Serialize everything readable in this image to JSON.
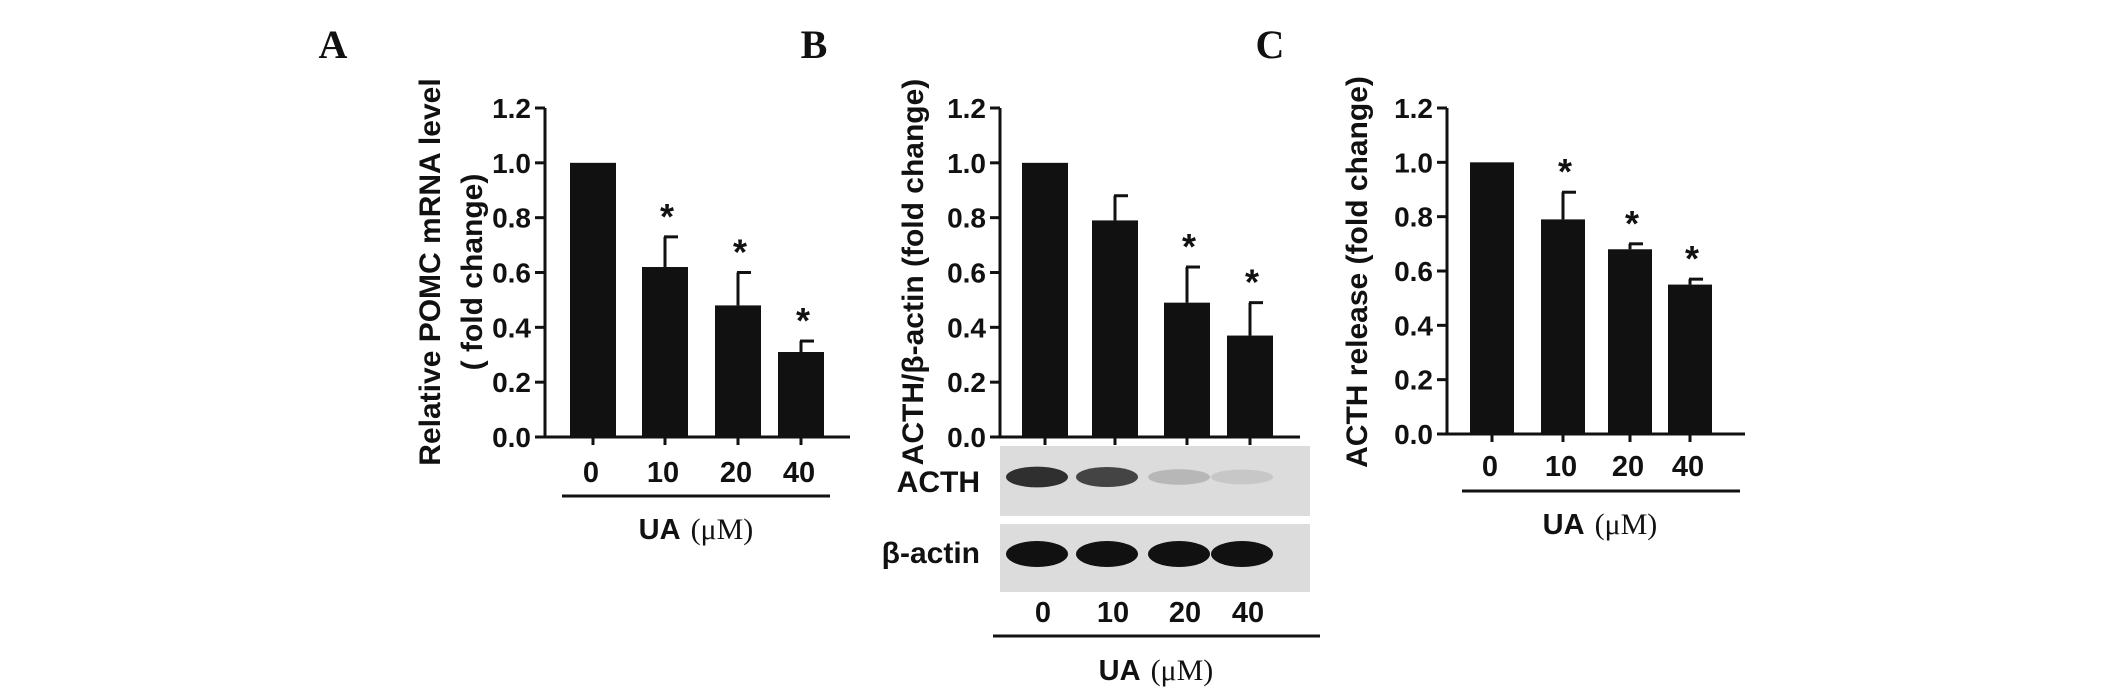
{
  "chart_data": [
    {
      "type": "bar",
      "panel": "A",
      "categories": [
        "0",
        "10",
        "20",
        "40"
      ],
      "values": [
        1.0,
        0.62,
        0.48,
        0.31
      ],
      "errors": [
        0.0,
        0.11,
        0.12,
        0.04
      ],
      "significant": [
        false,
        true,
        true,
        true
      ],
      "significance_marker": "*",
      "ylabel": [
        "Relative POMC mRNA level",
        "( fold change)"
      ],
      "xlabel": "UA",
      "xlabel_unit": "(μM)",
      "ylim": [
        0,
        1.2
      ],
      "yticks": [
        "0.0",
        "0.2",
        "0.4",
        "0.6",
        "0.8",
        "1.0",
        "1.2"
      ]
    },
    {
      "type": "bar",
      "panel": "B",
      "categories": [
        "0",
        "10",
        "20",
        "40"
      ],
      "values": [
        1.0,
        0.79,
        0.49,
        0.37
      ],
      "errors": [
        0.0,
        0.09,
        0.13,
        0.12
      ],
      "significant": [
        false,
        false,
        true,
        true
      ],
      "significance_marker": "*",
      "ylabel": [
        "ACTH/β-actin (fold change)"
      ],
      "xlabel": "UA",
      "xlabel_unit": "(μM)",
      "ylim": [
        0,
        1.2
      ],
      "yticks": [
        "0.0",
        "0.2",
        "0.4",
        "0.6",
        "0.8",
        "1.0",
        "1.2"
      ],
      "blots": [
        {
          "label": "ACTH",
          "intensities": [
            0.85,
            0.75,
            0.18,
            0.1
          ]
        },
        {
          "label": "β-actin",
          "intensities": [
            1.0,
            1.0,
            1.0,
            1.0
          ]
        }
      ]
    },
    {
      "type": "bar",
      "panel": "C",
      "categories": [
        "0",
        "10",
        "20",
        "40"
      ],
      "values": [
        1.0,
        0.79,
        0.68,
        0.55
      ],
      "errors": [
        0.0,
        0.1,
        0.02,
        0.02
      ],
      "significant": [
        false,
        true,
        true,
        true
      ],
      "significance_marker": "*",
      "ylabel": [
        "ACTH release (fold change)"
      ],
      "xlabel": "UA",
      "xlabel_unit": "(μM)",
      "ylim": [
        0,
        1.2
      ],
      "yticks": [
        "0.0",
        "0.2",
        "0.4",
        "0.6",
        "0.8",
        "1.0",
        "1.2"
      ]
    }
  ],
  "colors": {
    "bar": "#111111",
    "axis": "#111111",
    "blot_background": "#dcdcdc",
    "band": "#111111"
  }
}
